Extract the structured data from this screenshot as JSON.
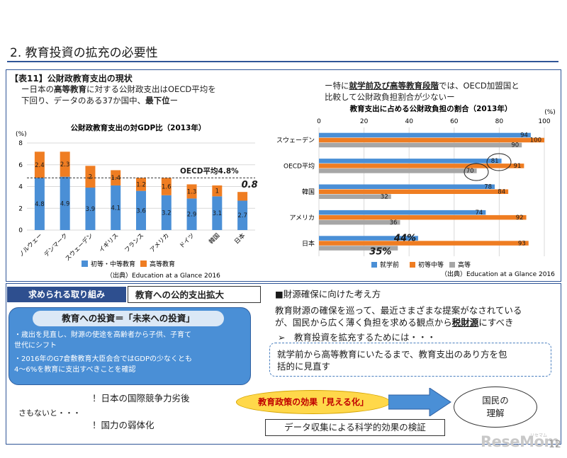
{
  "page": {
    "title": "2. 教育投資の拡充の必要性",
    "table_label": "【表11】公財政教育支出の現状",
    "note_left_line1": "ー日本の",
    "note_left_bold1": "高等教育",
    "note_left_line1b": "に対する公財政支出はOECD平均を",
    "note_left_line2a": "下回り、データのある37か国中、",
    "note_left_bold2": "最下位",
    "note_left_line2b": "ー",
    "note_right_line1a": "ー特に",
    "note_right_bold1": "就学前及び高等教育段階",
    "note_right_line1b": "では、OECD加盟国と",
    "note_right_line2": "比較して公財政負担割合が少ないー",
    "source_left": "（出典）Education at a Glance 2016",
    "source_right": "（出典）Education at a Glance 2016",
    "page_number": "12",
    "logo": "ReseMom",
    "logo_small": "リセマム"
  },
  "bottom": {
    "required_label": "求められる取り組み",
    "policy_label": "教育への公的支出拡大",
    "invest_head": "教育への投資＝「未来への投資」",
    "bullet1_line1": "・歳出を見直し、財源の使途を高齢者から子供、子育て",
    "bullet1_line2": "世代にシフト",
    "bullet2_line1": "・2016年のG7倉敷教育大臣会合ではGDPの少なくとも",
    "bullet2_line2": "4～6%を教育に支出すべきことを確認",
    "finance_title": "■財源確保に向けた考え方",
    "finance_line1": "教育財源の確保を巡って、最近さまざまな提案がなされている",
    "finance_line2a": "が、国民から広く薄く負担を求める観点から",
    "finance_line2b": "税財源",
    "finance_line2c": "にすべき",
    "arrow_item": "➢　教育投資を拡充するためには・・・",
    "dash_line1": "就学前から高等教育にいたるまで、教育支出のあり方を包",
    "dash_line2": "括的に見直す",
    "warn1": "！日本の国際競争力劣後",
    "otherwise": "さもないと・・・",
    "warn2": "！国力の弱体化",
    "effect": "教育政策の効果「見える化」",
    "data_check": "データ収集による科学的効果の検証",
    "people_line1": "国民の",
    "people_line2": "理解"
  },
  "chart_data": [
    {
      "type": "bar",
      "stacked": true,
      "title": "公財政教育支出の対GDP比（2013年）",
      "ylabel": "(%)",
      "ylim": [
        0,
        8
      ],
      "yticks": [
        "0",
        "2",
        "4",
        "6",
        "8"
      ],
      "categories": [
        "ノルウェー",
        "デンマーク",
        "スウェーデン",
        "イギリス",
        "フランス",
        "アメリカ",
        "ドイツ",
        "韓国",
        "日本"
      ],
      "series": [
        {
          "name": "初等・中等教育",
          "color": "#4a8fd6",
          "values": [
            4.8,
            4.9,
            3.9,
            4.1,
            3.6,
            3.2,
            2.9,
            3.1,
            2.7
          ],
          "labels": [
            "4.8",
            "4.9",
            "3.9",
            "4.1",
            "3.6",
            "3.2",
            "2.9",
            "3.1",
            "2.7"
          ]
        },
        {
          "name": "高等教育",
          "color": "#ef7d22",
          "values": [
            2.4,
            2.3,
            2,
            1.4,
            1.2,
            1.6,
            1.3,
            1,
            0.8
          ],
          "labels": [
            "2.4",
            "2.3",
            "2",
            "1.4",
            "1.2",
            "1.6",
            "1.3",
            "1",
            "0.8"
          ]
        }
      ],
      "reference_line": {
        "value": 4.8,
        "label": "OECD平均4.8%"
      },
      "grid": true,
      "legend": "bottom"
    },
    {
      "type": "bar",
      "orientation": "horizontal",
      "title": "教育支出に占める公財政負担の割合（2013年）",
      "xlabel": "(%)",
      "xlim": [
        0,
        100
      ],
      "xticks": [
        "0",
        "20",
        "40",
        "60",
        "80",
        "100"
      ],
      "categories": [
        "スウェーデン",
        "OECD平均",
        "韓国",
        "アメリカ",
        "日本"
      ],
      "series": [
        {
          "name": "就学前",
          "color": "#4a8fd6",
          "values": [
            94,
            81,
            78,
            74,
            44
          ],
          "labels": [
            "94",
            "81",
            "78",
            "74",
            "44%"
          ]
        },
        {
          "name": "初等中等",
          "color": "#ef7d22",
          "values": [
            100,
            91,
            84,
            92,
            93
          ],
          "labels": [
            "100",
            "91",
            "84",
            "92",
            "93"
          ]
        },
        {
          "name": "高等",
          "color": "#a6a6a6",
          "values": [
            90,
            70,
            32,
            36,
            35
          ],
          "labels": [
            "90",
            "70",
            "32",
            "36",
            "35%"
          ]
        }
      ],
      "grid": true,
      "legend": "bottom"
    }
  ]
}
